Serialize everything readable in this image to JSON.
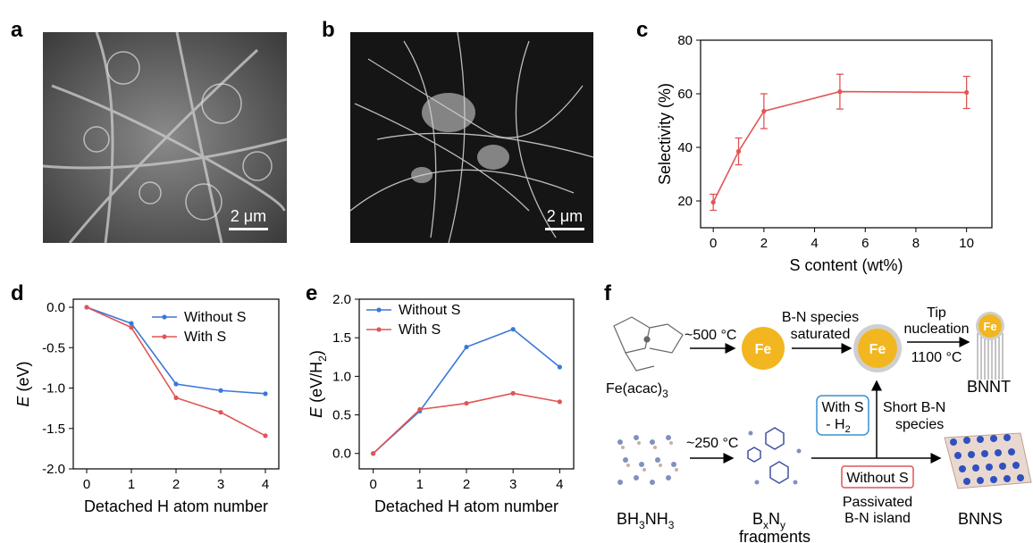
{
  "panels": {
    "a": {
      "letter": "a",
      "scalebar": "2 μm"
    },
    "b": {
      "letter": "b",
      "scalebar": "2 μm"
    },
    "c": {
      "letter": "c"
    },
    "d": {
      "letter": "d"
    },
    "e": {
      "letter": "e"
    },
    "f": {
      "letter": "f"
    }
  },
  "colors": {
    "blue": "#3a78d8",
    "red": "#e05555",
    "fe": "#f2b620"
  },
  "chart_data": [
    {
      "id": "c",
      "type": "line",
      "xlabel": "S content (wt%)",
      "ylabel": "Selectivity (%)",
      "xlim": [
        -0.5,
        11
      ],
      "ylim": [
        10,
        80
      ],
      "xticks": [
        0,
        2,
        4,
        6,
        8,
        10
      ],
      "yticks": [
        20,
        40,
        60,
        80
      ],
      "series": [
        {
          "x": [
            0,
            1,
            2,
            5,
            10
          ],
          "y": [
            19.5,
            38.5,
            53.5,
            60.8,
            60.5
          ],
          "err": [
            3,
            5,
            6.5,
            6.5,
            6
          ],
          "color": "#e05555"
        }
      ]
    },
    {
      "id": "d",
      "type": "line",
      "xlabel": "Detached H atom number",
      "ylabel": "E (eV)",
      "xlim": [
        -0.3,
        4.3
      ],
      "ylim": [
        -2.0,
        0.1
      ],
      "xticks": [
        0,
        1,
        2,
        3,
        4
      ],
      "yticks": [
        "0.0",
        "-0.5",
        "-1.0",
        "-1.5",
        "-2.0"
      ],
      "legend": "top-right",
      "series": [
        {
          "name": "Without S",
          "x": [
            0,
            1,
            2,
            3,
            4
          ],
          "y": [
            0.0,
            -0.2,
            -0.95,
            -1.03,
            -1.07
          ],
          "color": "#3a78d8"
        },
        {
          "name": "With S",
          "x": [
            0,
            1,
            2,
            3,
            4
          ],
          "y": [
            0.0,
            -0.25,
            -1.12,
            -1.3,
            -1.59
          ],
          "color": "#e05555"
        }
      ]
    },
    {
      "id": "e",
      "type": "line",
      "xlabel": "Detached H atom number",
      "ylabel": "E (eV/H2)",
      "xlim": [
        -0.3,
        4.3
      ],
      "ylim": [
        -0.2,
        2.0
      ],
      "xticks": [
        0,
        1,
        2,
        3,
        4
      ],
      "yticks": [
        "0.0",
        "0.5",
        "1.0",
        "1.5",
        "2.0"
      ],
      "legend": "top-left",
      "series": [
        {
          "name": "Without S",
          "x": [
            0,
            1,
            2,
            3,
            4
          ],
          "y": [
            0.0,
            0.55,
            1.38,
            1.61,
            1.12
          ],
          "color": "#3a78d8"
        },
        {
          "name": "With S",
          "x": [
            0,
            1,
            2,
            3,
            4
          ],
          "y": [
            0.0,
            0.57,
            0.65,
            0.78,
            0.67
          ],
          "color": "#e05555"
        }
      ]
    }
  ],
  "diagram_f": {
    "fe_label": "Fe",
    "temp1": "~500 °C",
    "bn_saturated_1": "B-N species",
    "bn_saturated_2": "saturated",
    "tip_1": "Tip",
    "tip_2": "nucleation",
    "temp_1100": "1100 °C",
    "fe_acac": "Fe(acac)3",
    "bnnt": "BNNT",
    "with_s_1": "With S",
    "with_s_2": "- H2",
    "short_bn_1": "Short B-N",
    "short_bn_2": "species",
    "temp2": "~250 °C",
    "without_s": "Without S",
    "passivated_1": "Passivated",
    "passivated_2": "B-N island",
    "bh3nh3": "BH3NH3",
    "bxny": "BxNy",
    "fragments": "fragments",
    "bnns": "BNNS"
  }
}
